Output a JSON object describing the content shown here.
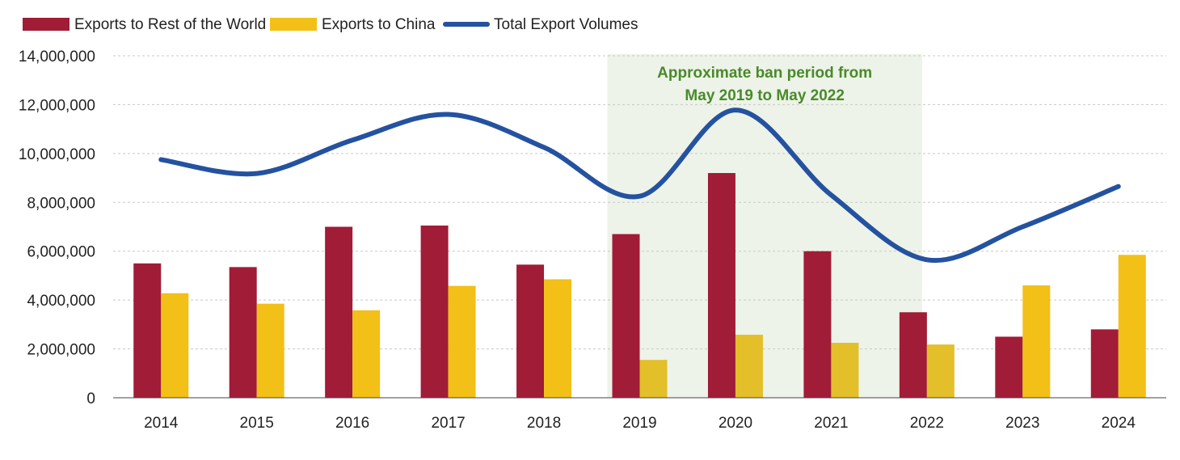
{
  "chart_data": {
    "type": "bar",
    "title": "",
    "xlabel": "",
    "ylabel": "",
    "categories": [
      "2014",
      "2015",
      "2016",
      "2017",
      "2018",
      "2019",
      "2020",
      "2021",
      "2022",
      "2023",
      "2024"
    ],
    "ylim": [
      0,
      14000000
    ],
    "yticks": [
      0,
      2000000,
      4000000,
      6000000,
      8000000,
      10000000,
      12000000,
      14000000
    ],
    "ytick_labels": [
      "0",
      "2,000,000",
      "4,000,000",
      "6,000,000",
      "8,000,000",
      "10,000,000",
      "12,000,000",
      "14,000,000"
    ],
    "grid": true,
    "legend_position": "top-left",
    "series": [
      {
        "name": "Exports to Rest of the World",
        "kind": "bar",
        "color": "#a11c36",
        "values": [
          5500000,
          5350000,
          7000000,
          7050000,
          5450000,
          6700000,
          9200000,
          6000000,
          3500000,
          2500000,
          2800000
        ]
      },
      {
        "name": "Exports to China",
        "kind": "bar",
        "color": "#f2c016",
        "values": [
          4280000,
          3850000,
          3580000,
          4580000,
          4850000,
          1550000,
          2580000,
          2250000,
          2180000,
          4600000,
          5850000
        ]
      },
      {
        "name": "Total Export Volumes",
        "kind": "line",
        "color": "#2452a0",
        "values": [
          9750000,
          9180000,
          10550000,
          11600000,
          10250000,
          8250000,
          11780000,
          8300000,
          5650000,
          7000000,
          8650000
        ]
      }
    ],
    "annotation": {
      "lines": [
        "Approximate ban period from",
        "May 2019 to May 2022"
      ],
      "start_category": "2019",
      "end_category": "2022",
      "shade_color": "#edf3e8"
    }
  }
}
